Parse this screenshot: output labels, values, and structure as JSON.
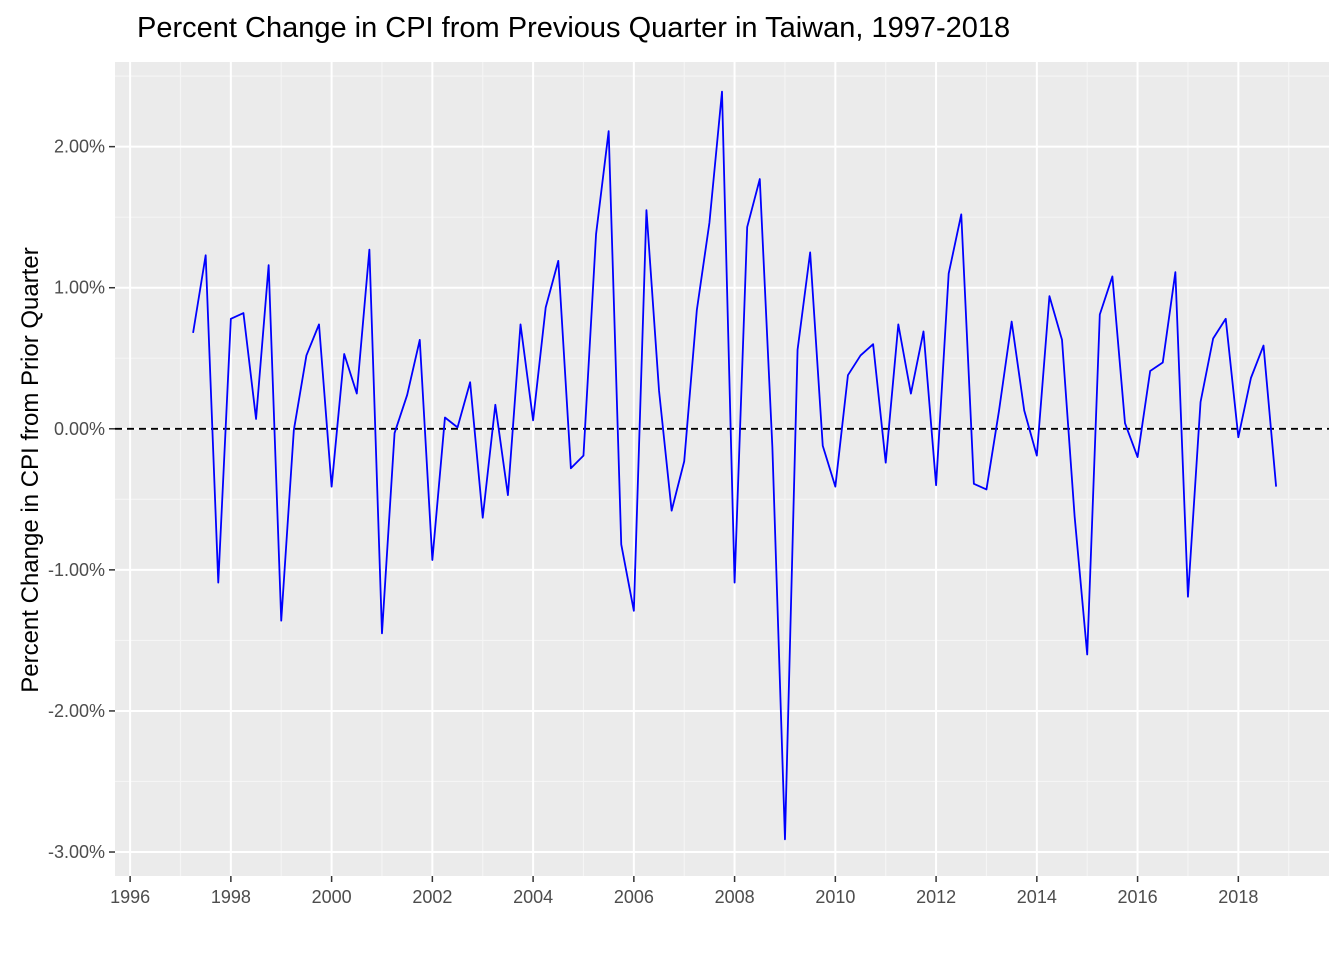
{
  "chart_data": {
    "type": "line",
    "title": "Percent Change in CPI from Previous Quarter in Taiwan, 1997-2018",
    "xlabel": "",
    "ylabel": "Percent Change in CPI from Prior Quarter",
    "xlim": [
      1995.7,
      2019.8
    ],
    "ylim": [
      -3.17,
      2.6
    ],
    "x_ticks": [
      1996,
      1998,
      2000,
      2002,
      2004,
      2006,
      2008,
      2010,
      2012,
      2014,
      2016,
      2018
    ],
    "x_tick_labels": [
      "1996",
      "1998",
      "2000",
      "2002",
      "2004",
      "2006",
      "2008",
      "2010",
      "2012",
      "2014",
      "2016",
      "2018"
    ],
    "y_ticks": [
      -3,
      -2,
      -1,
      0,
      1,
      2
    ],
    "y_tick_labels": [
      "-3.00%",
      "-2.00%",
      "-1.00%",
      "0.00%",
      "1.00%",
      "2.00%"
    ],
    "grid": true,
    "reference_line": {
      "y": 0,
      "style": "dashed",
      "color": "#000000"
    },
    "series": [
      {
        "color": "#0000ff",
        "x_start": 1997.25,
        "x_step": 0.25,
        "values": [
          0.68,
          1.23,
          -1.09,
          0.78,
          0.82,
          0.07,
          1.16,
          -1.36,
          -0.01,
          0.52,
          0.74,
          -0.41,
          0.53,
          0.25,
          1.27,
          -1.45,
          -0.03,
          0.24,
          0.63,
          -0.93,
          0.08,
          0.01,
          0.33,
          -0.63,
          0.17,
          -0.47,
          0.74,
          0.06,
          0.86,
          1.19,
          -0.28,
          -0.19,
          1.38,
          2.11,
          -0.82,
          -1.29,
          1.55,
          0.27,
          -0.58,
          -0.23,
          0.84,
          1.46,
          2.39,
          -1.09,
          1.43,
          1.77,
          -0.13,
          -2.91,
          0.56,
          1.25,
          -0.12,
          -0.41,
          0.38,
          0.52,
          0.6,
          -0.24,
          0.74,
          0.25,
          0.69,
          -0.4,
          1.1,
          1.52,
          -0.39,
          -0.43,
          0.13,
          0.76,
          0.13,
          -0.19,
          0.94,
          0.63,
          -0.62,
          -1.6,
          0.81,
          1.08,
          0.04,
          -0.2,
          0.41,
          0.47,
          1.11,
          -1.19,
          0.19,
          0.64,
          0.78,
          -0.06,
          0.36,
          0.59,
          -0.41
        ]
      }
    ]
  },
  "colors": {
    "panel_background": "#ebebeb",
    "grid_major": "#ffffff",
    "grid_minor": "#f5f5f5",
    "line": "#0000ff",
    "tick_text": "#4d4d4d",
    "tick_mark": "#333333"
  }
}
